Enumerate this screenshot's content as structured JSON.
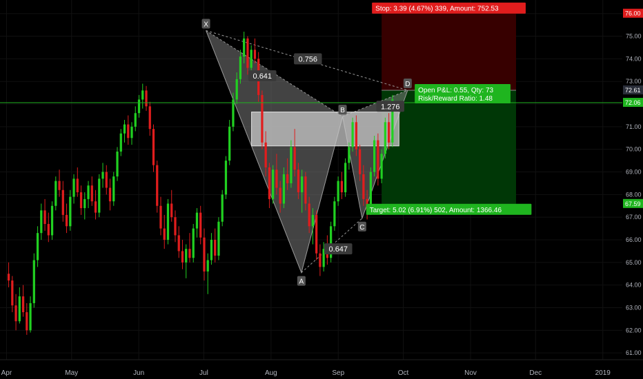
{
  "chart_data": {
    "type": "candlestick",
    "colors": {
      "background": "#000000",
      "up": "#21d021",
      "down": "#e01d1d",
      "axis_text": "#b2b5be",
      "grid": "#111111",
      "stop_zone": "#3a0000",
      "target_zone": "#003a06",
      "current_line": "#1fb51f",
      "pattern_fill": "#7a7a7a",
      "prz_fill": "#c8c8c8"
    },
    "y_axis": {
      "range": [
        60.7,
        76.6
      ],
      "ticks": [
        "61.00",
        "62.00",
        "63.00",
        "64.00",
        "65.00",
        "66.00",
        "67.00",
        "68.00",
        "69.00",
        "70.00",
        "71.00",
        "72.00",
        "73.00",
        "74.00",
        "75.00",
        "76.00"
      ],
      "tick_values": [
        61,
        62,
        63,
        64,
        65,
        66,
        67,
        68,
        69,
        70,
        71,
        72,
        73,
        74,
        75,
        76
      ]
    },
    "x_axis": {
      "labels": [
        "Apr",
        "May",
        "Jun",
        "Jul",
        "Aug",
        "Sep",
        "Oct",
        "Nov",
        "Dec",
        "2019"
      ],
      "label_dates": [
        "2018-04-01",
        "2018-05-01",
        "2018-06-01",
        "2018-07-01",
        "2018-08-01",
        "2018-09-01",
        "2018-10-01",
        "2018-11-01",
        "2018-12-01",
        "2019-01-01"
      ],
      "range": [
        "2018-03-29",
        "2019-01-10"
      ]
    },
    "price_tags": [
      {
        "label": "76.00",
        "value": 76.0,
        "bg": "#e01d1d",
        "fg": "#ffffff"
      },
      {
        "label": "72.61",
        "value": 72.61,
        "bg": "#2a2e39",
        "fg": "#ffffff"
      },
      {
        "label": "72.06",
        "value": 72.06,
        "bg": "#1fb51f",
        "fg": "#ffffff"
      },
      {
        "label": "67.59",
        "value": 67.59,
        "bg": "#1fb51f",
        "fg": "#ffffff"
      }
    ],
    "current_price": 72.06,
    "pattern": {
      "points": [
        {
          "name": "X",
          "date": "2018-07-02",
          "value": 75.25
        },
        {
          "name": "A",
          "date": "2018-08-15",
          "value": 64.55
        },
        {
          "name": "B",
          "date": "2018-09-03",
          "value": 71.45
        },
        {
          "name": "C",
          "date": "2018-09-12",
          "value": 66.95
        },
        {
          "name": "D",
          "date": "2018-10-03",
          "value": 72.61
        }
      ],
      "ratios": [
        {
          "label": "0.641",
          "date": "2018-07-28",
          "value": 73.25
        },
        {
          "label": "0.756",
          "date": "2018-08-18",
          "value": 74.0
        },
        {
          "label": "0.647",
          "date": "2018-09-01",
          "value": 65.6
        },
        {
          "label": "1.276",
          "date": "2018-09-25",
          "value": 71.9
        }
      ],
      "prz": {
        "date_start": "2018-07-23",
        "date_end": "2018-09-29",
        "high": 71.65,
        "low": 70.15
      }
    },
    "position": {
      "date_start": "2018-09-21",
      "date_end": "2018-11-22",
      "entry": 72.61,
      "stop": 76.0,
      "target": 67.59,
      "stop_label": "Stop: 3.39 (4.67%) 339, Amount: 752.53",
      "target_label": "Target: 5.02 (6.91%) 502, Amount: 1366.46",
      "pnl_line1": "Open P&L: 0.55, Qty: 73",
      "pnl_line2": "Risk/Reward Ratio: 1.48"
    },
    "candles": [
      {
        "o": 64.5,
        "h": 65.0,
        "l": 63.9,
        "c": 64.2
      },
      {
        "o": 64.2,
        "h": 64.4,
        "l": 62.8,
        "c": 63.1
      },
      {
        "o": 63.1,
        "h": 63.6,
        "l": 62.0,
        "c": 62.4
      },
      {
        "o": 62.4,
        "h": 63.9,
        "l": 62.3,
        "c": 63.5
      },
      {
        "o": 63.5,
        "h": 64.0,
        "l": 62.6,
        "c": 62.8
      },
      {
        "o": 62.8,
        "h": 63.2,
        "l": 61.8,
        "c": 62.0
      },
      {
        "o": 62.0,
        "h": 63.5,
        "l": 61.9,
        "c": 63.2
      },
      {
        "o": 63.2,
        "h": 65.4,
        "l": 63.0,
        "c": 65.1
      },
      {
        "o": 65.1,
        "h": 66.6,
        "l": 64.8,
        "c": 66.3
      },
      {
        "o": 66.3,
        "h": 67.6,
        "l": 66.0,
        "c": 67.3
      },
      {
        "o": 67.3,
        "h": 67.8,
        "l": 66.4,
        "c": 66.7
      },
      {
        "o": 66.7,
        "h": 67.2,
        "l": 65.9,
        "c": 66.2
      },
      {
        "o": 66.2,
        "h": 67.7,
        "l": 66.0,
        "c": 67.5
      },
      {
        "o": 67.5,
        "h": 68.8,
        "l": 67.3,
        "c": 68.6
      },
      {
        "o": 68.6,
        "h": 69.1,
        "l": 67.9,
        "c": 68.2
      },
      {
        "o": 68.2,
        "h": 68.6,
        "l": 66.8,
        "c": 67.1
      },
      {
        "o": 67.1,
        "h": 67.6,
        "l": 66.3,
        "c": 66.6
      },
      {
        "o": 66.6,
        "h": 68.2,
        "l": 66.4,
        "c": 67.9
      },
      {
        "o": 67.9,
        "h": 68.9,
        "l": 67.6,
        "c": 68.7
      },
      {
        "o": 68.7,
        "h": 69.2,
        "l": 67.9,
        "c": 68.1
      },
      {
        "o": 68.1,
        "h": 68.4,
        "l": 67.1,
        "c": 67.4
      },
      {
        "o": 67.4,
        "h": 68.1,
        "l": 66.9,
        "c": 67.8
      },
      {
        "o": 67.8,
        "h": 68.6,
        "l": 67.4,
        "c": 68.4
      },
      {
        "o": 68.4,
        "h": 68.8,
        "l": 67.5,
        "c": 67.7
      },
      {
        "o": 67.7,
        "h": 68.2,
        "l": 66.9,
        "c": 67.2
      },
      {
        "o": 67.2,
        "h": 68.9,
        "l": 67.0,
        "c": 68.7
      },
      {
        "o": 68.7,
        "h": 69.4,
        "l": 68.3,
        "c": 69.0
      },
      {
        "o": 69.0,
        "h": 69.3,
        "l": 68.0,
        "c": 68.3
      },
      {
        "o": 68.3,
        "h": 68.7,
        "l": 67.3,
        "c": 67.7
      },
      {
        "o": 67.7,
        "h": 69.0,
        "l": 67.5,
        "c": 68.8
      },
      {
        "o": 68.8,
        "h": 70.1,
        "l": 68.6,
        "c": 69.9
      },
      {
        "o": 69.9,
        "h": 70.9,
        "l": 69.7,
        "c": 70.7
      },
      {
        "o": 70.7,
        "h": 71.3,
        "l": 70.3,
        "c": 71.1
      },
      {
        "o": 71.1,
        "h": 71.5,
        "l": 70.2,
        "c": 70.5
      },
      {
        "o": 70.5,
        "h": 71.2,
        "l": 70.2,
        "c": 71.0
      },
      {
        "o": 71.0,
        "h": 71.9,
        "l": 70.8,
        "c": 71.6
      },
      {
        "o": 71.6,
        "h": 72.4,
        "l": 71.4,
        "c": 72.2
      },
      {
        "o": 72.2,
        "h": 72.9,
        "l": 71.8,
        "c": 72.6
      },
      {
        "o": 72.6,
        "h": 72.8,
        "l": 71.7,
        "c": 71.9
      },
      {
        "o": 71.9,
        "h": 72.1,
        "l": 70.6,
        "c": 70.9
      },
      {
        "o": 70.9,
        "h": 71.1,
        "l": 69.0,
        "c": 69.3
      },
      {
        "o": 69.3,
        "h": 69.5,
        "l": 67.2,
        "c": 67.5
      },
      {
        "o": 67.5,
        "h": 67.9,
        "l": 66.2,
        "c": 66.5
      },
      {
        "o": 66.5,
        "h": 67.1,
        "l": 65.6,
        "c": 66.0
      },
      {
        "o": 66.0,
        "h": 67.8,
        "l": 65.8,
        "c": 67.6
      },
      {
        "o": 67.6,
        "h": 68.2,
        "l": 66.8,
        "c": 67.0
      },
      {
        "o": 67.0,
        "h": 67.3,
        "l": 65.9,
        "c": 66.2
      },
      {
        "o": 66.2,
        "h": 66.6,
        "l": 65.2,
        "c": 65.5
      },
      {
        "o": 65.5,
        "h": 66.0,
        "l": 64.7,
        "c": 65.0
      },
      {
        "o": 65.0,
        "h": 65.8,
        "l": 64.3,
        "c": 65.6
      },
      {
        "o": 65.6,
        "h": 66.3,
        "l": 65.0,
        "c": 65.2
      },
      {
        "o": 65.2,
        "h": 66.7,
        "l": 65.0,
        "c": 66.5
      },
      {
        "o": 66.5,
        "h": 67.4,
        "l": 66.1,
        "c": 67.2
      },
      {
        "o": 67.2,
        "h": 67.5,
        "l": 65.8,
        "c": 66.1
      },
      {
        "o": 66.1,
        "h": 66.5,
        "l": 64.2,
        "c": 64.6
      },
      {
        "o": 64.6,
        "h": 65.4,
        "l": 63.6,
        "c": 65.1
      },
      {
        "o": 65.1,
        "h": 66.3,
        "l": 64.9,
        "c": 66.0
      },
      {
        "o": 66.0,
        "h": 66.5,
        "l": 65.0,
        "c": 65.3
      },
      {
        "o": 65.3,
        "h": 67.0,
        "l": 65.1,
        "c": 66.8
      },
      {
        "o": 66.8,
        "h": 68.2,
        "l": 66.6,
        "c": 68.0
      },
      {
        "o": 68.0,
        "h": 69.7,
        "l": 67.8,
        "c": 69.5
      },
      {
        "o": 69.5,
        "h": 71.3,
        "l": 69.3,
        "c": 71.0
      },
      {
        "o": 71.0,
        "h": 72.5,
        "l": 70.8,
        "c": 72.2
      },
      {
        "o": 72.2,
        "h": 73.4,
        "l": 72.0,
        "c": 73.1
      },
      {
        "o": 73.1,
        "h": 74.4,
        "l": 72.9,
        "c": 74.1
      },
      {
        "o": 74.1,
        "h": 75.2,
        "l": 73.8,
        "c": 74.9
      },
      {
        "o": 74.9,
        "h": 75.0,
        "l": 73.3,
        "c": 73.6
      },
      {
        "o": 73.6,
        "h": 74.6,
        "l": 73.4,
        "c": 74.4
      },
      {
        "o": 74.4,
        "h": 74.9,
        "l": 73.8,
        "c": 74.0
      },
      {
        "o": 74.0,
        "h": 74.3,
        "l": 72.1,
        "c": 72.4
      },
      {
        "o": 72.4,
        "h": 72.6,
        "l": 70.0,
        "c": 70.3
      },
      {
        "o": 70.3,
        "h": 70.8,
        "l": 68.8,
        "c": 69.2
      },
      {
        "o": 69.2,
        "h": 69.4,
        "l": 67.4,
        "c": 67.8
      },
      {
        "o": 67.8,
        "h": 69.3,
        "l": 67.6,
        "c": 69.1
      },
      {
        "o": 69.1,
        "h": 69.8,
        "l": 68.0,
        "c": 68.3
      },
      {
        "o": 68.3,
        "h": 68.6,
        "l": 67.2,
        "c": 67.6
      },
      {
        "o": 67.6,
        "h": 69.2,
        "l": 67.4,
        "c": 68.9
      },
      {
        "o": 68.9,
        "h": 69.6,
        "l": 68.2,
        "c": 68.5
      },
      {
        "o": 68.5,
        "h": 70.4,
        "l": 68.3,
        "c": 70.1
      },
      {
        "o": 70.1,
        "h": 70.9,
        "l": 68.8,
        "c": 69.1
      },
      {
        "o": 69.1,
        "h": 69.4,
        "l": 67.8,
        "c": 68.1
      },
      {
        "o": 68.1,
        "h": 69.1,
        "l": 67.2,
        "c": 68.8
      },
      {
        "o": 68.8,
        "h": 69.0,
        "l": 67.3,
        "c": 67.6
      },
      {
        "o": 67.6,
        "h": 67.9,
        "l": 66.3,
        "c": 66.6
      },
      {
        "o": 66.6,
        "h": 67.4,
        "l": 65.8,
        "c": 67.1
      },
      {
        "o": 67.1,
        "h": 67.3,
        "l": 65.1,
        "c": 65.4
      },
      {
        "o": 65.4,
        "h": 65.8,
        "l": 64.4,
        "c": 64.8
      },
      {
        "o": 64.8,
        "h": 65.9,
        "l": 64.6,
        "c": 65.6
      },
      {
        "o": 65.6,
        "h": 66.2,
        "l": 64.9,
        "c": 65.2
      },
      {
        "o": 65.2,
        "h": 66.8,
        "l": 65.0,
        "c": 66.6
      },
      {
        "o": 66.6,
        "h": 67.9,
        "l": 66.4,
        "c": 67.7
      },
      {
        "o": 67.7,
        "h": 68.8,
        "l": 67.5,
        "c": 68.6
      },
      {
        "o": 68.6,
        "h": 69.0,
        "l": 67.8,
        "c": 68.1
      },
      {
        "o": 68.1,
        "h": 69.6,
        "l": 67.9,
        "c": 69.4
      },
      {
        "o": 69.4,
        "h": 70.3,
        "l": 69.1,
        "c": 70.1
      },
      {
        "o": 70.1,
        "h": 71.4,
        "l": 69.9,
        "c": 71.2
      },
      {
        "o": 71.2,
        "h": 71.5,
        "l": 69.7,
        "c": 70.0
      },
      {
        "o": 70.0,
        "h": 70.2,
        "l": 68.6,
        "c": 68.9
      },
      {
        "o": 68.9,
        "h": 69.3,
        "l": 67.5,
        "c": 67.8
      },
      {
        "o": 67.8,
        "h": 68.2,
        "l": 66.9,
        "c": 67.3
      },
      {
        "o": 67.3,
        "h": 69.2,
        "l": 67.1,
        "c": 69.0
      },
      {
        "o": 69.0,
        "h": 70.6,
        "l": 68.8,
        "c": 70.4
      },
      {
        "o": 70.4,
        "h": 70.7,
        "l": 68.4,
        "c": 68.7
      },
      {
        "o": 68.7,
        "h": 70.0,
        "l": 68.5,
        "c": 69.8
      },
      {
        "o": 69.8,
        "h": 71.4,
        "l": 69.6,
        "c": 71.2
      },
      {
        "o": 71.2,
        "h": 71.6,
        "l": 70.0,
        "c": 70.3
      },
      {
        "o": 70.3,
        "h": 72.4,
        "l": 70.1,
        "c": 72.2
      }
    ]
  }
}
